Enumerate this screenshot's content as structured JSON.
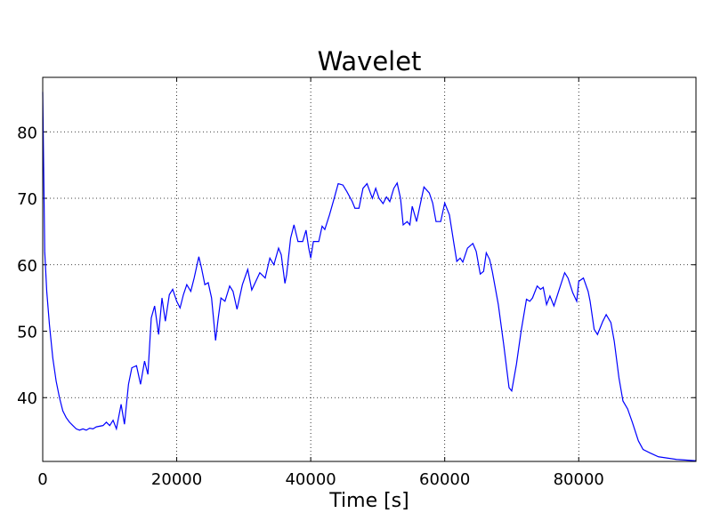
{
  "chart_data": {
    "type": "line",
    "title": "Wavelet",
    "x_label": "Time [s]",
    "x": [
      0,
      300,
      600,
      1000,
      1500,
      2000,
      2500,
      3000,
      3500,
      4000,
      4500,
      5000,
      5500,
      6000,
      6500,
      7000,
      7500,
      8000,
      9000,
      9500,
      10000,
      10500,
      11000,
      11700,
      12200,
      12800,
      13300,
      14000,
      14600,
      15200,
      15700,
      16200,
      16700,
      17300,
      17800,
      18300,
      18900,
      19400,
      20000,
      20500,
      21000,
      21500,
      22100,
      22600,
      23300,
      23700,
      24200,
      24700,
      25200,
      25800,
      26200,
      26600,
      27200,
      27900,
      28400,
      29000,
      29800,
      30600,
      31200,
      31800,
      32400,
      33200,
      33900,
      34500,
      35200,
      35600,
      36150,
      36400,
      37000,
      37500,
      38100,
      38800,
      39300,
      39700,
      40000,
      40400,
      41200,
      41700,
      42100,
      42800,
      43500,
      44100,
      44800,
      45400,
      46200,
      46600,
      47200,
      47800,
      48400,
      49200,
      49700,
      50200,
      50800,
      51300,
      51800,
      52400,
      52900,
      53400,
      53800,
      54400,
      54800,
      55150,
      55800,
      56900,
      57700,
      58200,
      58700,
      59400,
      60000,
      60700,
      61400,
      61800,
      62300,
      62700,
      63400,
      64200,
      64700,
      65300,
      65800,
      66200,
      66700,
      67100,
      68000,
      68800,
      69600,
      70000,
      70700,
      71400,
      72200,
      72700,
      73100,
      73800,
      74300,
      74700,
      75200,
      75700,
      76300,
      77000,
      77900,
      78400,
      79100,
      79700,
      80000,
      80700,
      81400,
      81700,
      82300,
      82800,
      83600,
      84100,
      84800,
      85300,
      86000,
      86600,
      87300,
      88000,
      88900,
      89600,
      90600,
      91900,
      94600,
      97500
    ],
    "values": [
      86,
      62,
      56,
      51,
      46,
      42.5,
      40,
      38,
      37,
      36.3,
      35.8,
      35.3,
      35.1,
      35.3,
      35.1,
      35.4,
      35.3,
      35.6,
      35.8,
      36.3,
      35.8,
      36.6,
      35.3,
      39,
      36,
      42,
      44.5,
      44.8,
      42,
      45.5,
      43.5,
      52,
      53.8,
      49.5,
      55,
      51.5,
      55.5,
      56.3,
      54.5,
      53.5,
      55.5,
      57,
      56,
      58,
      61.2,
      59.5,
      57,
      57.3,
      55,
      48.6,
      52,
      55,
      54.5,
      56.8,
      56,
      53.3,
      57,
      59.3,
      56.2,
      57.5,
      58.8,
      58,
      61,
      60,
      62.5,
      61.5,
      57.2,
      58.5,
      64,
      66,
      63.5,
      63.5,
      65.2,
      62.5,
      61,
      63.5,
      63.5,
      65.8,
      65.3,
      67.5,
      70,
      72.2,
      72,
      71,
      69.5,
      68.5,
      68.5,
      71.5,
      72.2,
      70,
      71.5,
      70,
      69.2,
      70.2,
      69.5,
      71.5,
      72.3,
      70,
      66,
      66.5,
      66,
      68.8,
      66.5,
      71.7,
      70.8,
      69.3,
      66.5,
      66.5,
      69.3,
      67.5,
      63,
      60.5,
      61,
      60.4,
      62.5,
      63.2,
      62,
      58.6,
      59,
      61.8,
      60.8,
      59,
      54,
      48,
      41.5,
      41,
      45,
      50,
      54.8,
      54.5,
      55,
      56.8,
      56.3,
      56.6,
      54,
      55.3,
      53.8,
      56,
      58.8,
      58,
      55.8,
      54.5,
      57.5,
      58,
      56,
      54.5,
      50.3,
      49.5,
      51.5,
      52.5,
      51.3,
      48.5,
      43,
      39.5,
      38.3,
      36.3,
      33.5,
      32.2,
      31.7,
      31.1,
      30.7,
      30.5
    ],
    "color": "#0000ff",
    "xlim": [
      0,
      97500
    ],
    "ylim": [
      30.4,
      88.2
    ],
    "xticks": [
      0,
      20000,
      40000,
      60000,
      80000
    ],
    "yticks": [
      40,
      50,
      60,
      70,
      80
    ],
    "grid": true
  }
}
